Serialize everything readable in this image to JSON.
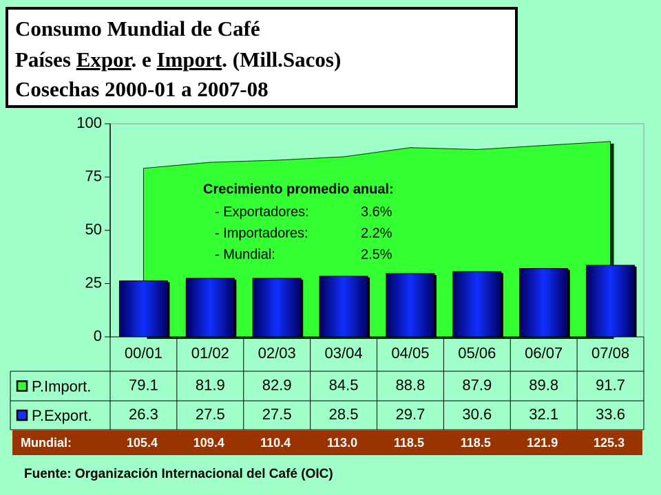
{
  "chart_data": {
    "type": "area-bar",
    "title": [
      "Consumo Mundial de Café",
      [
        "Países ",
        "Expor",
        ". e ",
        "Import",
        ". (Mill.Sacos)"
      ],
      "Cosechas 2000-01  a 2007-08"
    ],
    "categories": [
      "00/01",
      "01/02",
      "02/03",
      "03/04",
      "04/05",
      "05/06",
      "06/07",
      "07/08"
    ],
    "series": [
      {
        "name": "P.Import.",
        "color": "#33ff33",
        "values": [
          79.1,
          81.9,
          82.9,
          84.5,
          88.8,
          87.9,
          89.8,
          91.7
        ]
      },
      {
        "name": "P.Export.",
        "color": "#1030ff",
        "values": [
          26.3,
          27.5,
          27.5,
          28.5,
          29.7,
          30.6,
          32.1,
          33.6
        ]
      }
    ],
    "totals": {
      "name": "Mundial:",
      "values": [
        105.4,
        109.4,
        110.4,
        113,
        118.5,
        118.5,
        121.9,
        125.3
      ],
      "value_labels": [
        "105.4",
        "109.4",
        "110.4",
        "113.0",
        "118.5",
        "118.5",
        "121.9",
        "125.3"
      ],
      "color": "#993300"
    },
    "annotation": {
      "title": "Crecimiento promedio anual:",
      "items": [
        {
          "label": "- Exportadores:",
          "value": "3.6%"
        },
        {
          "label": "- Importadores:",
          "value": "2.2%"
        },
        {
          "label": "- Mundial:",
          "value": "2.5%"
        }
      ]
    },
    "ylim": [
      0,
      100
    ],
    "yticks": [
      0,
      25,
      50,
      75,
      100
    ],
    "source": "Fuente: Organización Internacional del Café (OIC)"
  }
}
